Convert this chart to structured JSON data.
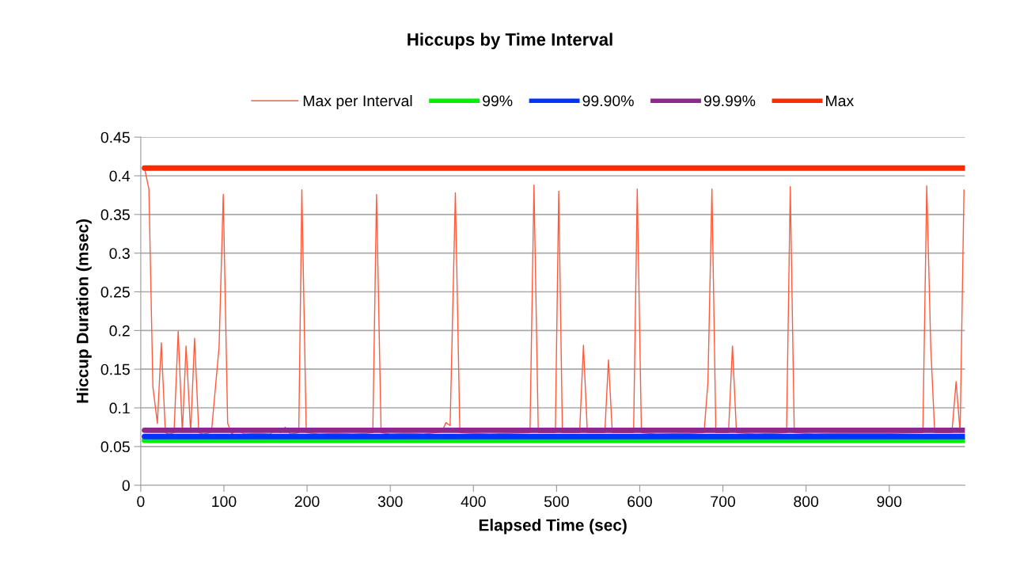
{
  "chart_data": {
    "type": "line",
    "title": "Hiccups by Time Interval",
    "xlabel": "Elapsed Time (sec)",
    "ylabel": "Hiccup Duration (msec)",
    "xlim": [
      0,
      991
    ],
    "xticks": [
      0,
      100,
      200,
      300,
      400,
      500,
      600,
      700,
      800,
      900
    ],
    "ylim": [
      0,
      0.45
    ],
    "yticks": [
      0,
      0.05,
      0.1,
      0.15,
      0.2,
      0.25,
      0.3,
      0.35,
      0.4,
      0.45
    ],
    "grid": "y",
    "legend": "top",
    "marker": "none",
    "line_style": "solid",
    "series": [
      {
        "name": "Max per Interval",
        "color": "#ff5a3c",
        "x": [
          4.5,
          9.8,
          14.6,
          20,
          24.7,
          29.6,
          34,
          40,
          45,
          50,
          54.5,
          60,
          64.7,
          69.8,
          75,
          80,
          85,
          94.2,
          99.2,
          104.5,
          109.5,
          114.5,
          125,
          140,
          155,
          163.6,
          168,
          173.7,
          180,
          190,
          193.7,
          199,
          215,
          235,
          255,
          270,
          279,
          283.5,
          289,
          300,
          320,
          340,
          362,
          367,
          372,
          378.3,
          383.7,
          400,
          420,
          440,
          468,
          472.8,
          478,
          498.5,
          502.6,
          507,
          527.7,
          532.3,
          537,
          558,
          562.4,
          567,
          592.6,
          597,
          602,
          620,
          660,
          677.3,
          682,
          686.8,
          691.5,
          706.7,
          711.5,
          716.3,
          740,
          760,
          776.5,
          781,
          785.8,
          810,
          840,
          900,
          940.4,
          945.1,
          949.9,
          954.7,
          975.3,
          980.4,
          985.2,
          989.9
        ],
        "values": [
          0.41,
          0.383,
          0.127,
          0.08,
          0.184,
          0.068,
          0.066,
          0.068,
          0.199,
          0.068,
          0.18,
          0.068,
          0.19,
          0.068,
          0.066,
          0.067,
          0.069,
          0.179,
          0.376,
          0.08,
          0.066,
          0.072,
          0.066,
          0.067,
          0.066,
          0.072,
          0.068,
          0.075,
          0.066,
          0.068,
          0.382,
          0.068,
          0.066,
          0.067,
          0.066,
          0.067,
          0.068,
          0.376,
          0.068,
          0.066,
          0.067,
          0.066,
          0.069,
          0.081,
          0.077,
          0.378,
          0.068,
          0.067,
          0.066,
          0.067,
          0.068,
          0.388,
          0.068,
          0.068,
          0.38,
          0.068,
          0.068,
          0.181,
          0.068,
          0.068,
          0.162,
          0.068,
          0.068,
          0.383,
          0.068,
          0.066,
          0.067,
          0.068,
          0.133,
          0.383,
          0.068,
          0.068,
          0.18,
          0.068,
          0.066,
          0.067,
          0.068,
          0.386,
          0.068,
          0.066,
          0.067,
          0.067,
          0.068,
          0.387,
          0.179,
          0.068,
          0.068,
          0.134,
          0.068,
          0.382
        ]
      },
      {
        "name": "99%",
        "color": "#00ee00",
        "x": [
          4.5,
          991
        ],
        "values": [
          0.058,
          0.058
        ]
      },
      {
        "name": "99.90%",
        "color": "#0033ff",
        "x": [
          4.5,
          991
        ],
        "values": [
          0.063,
          0.063
        ]
      },
      {
        "name": "99.99%",
        "color": "#8b2a8b",
        "x": [
          4.5,
          991
        ],
        "values": [
          0.071,
          0.071
        ]
      },
      {
        "name": "Max",
        "color": "#ff2a00",
        "x": [
          4.5,
          991
        ],
        "values": [
          0.41,
          0.41
        ]
      }
    ]
  }
}
